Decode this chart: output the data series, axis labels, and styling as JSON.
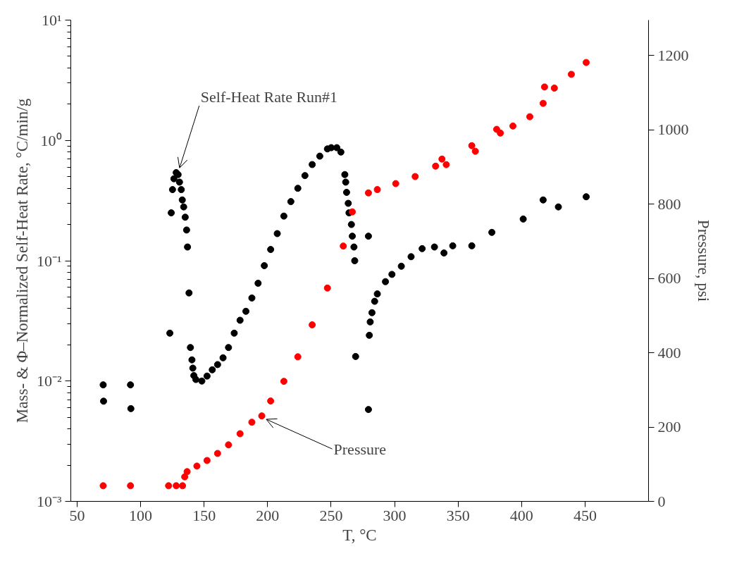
{
  "chart_data": {
    "type": "scatter",
    "xlabel": "T, °C",
    "ylabel": "Mass- & Φ–Normalized Self-Heat Rate, °C/min/g",
    "y2label": "Pressure, psi",
    "xlim": [
      45,
      500
    ],
    "xticks": [
      50,
      100,
      150,
      200,
      250,
      300,
      350,
      400,
      450
    ],
    "ylim": [
      0.001,
      10
    ],
    "yticks": [
      {
        "value": 0.001,
        "label": "10⁻³"
      },
      {
        "value": 0.01,
        "label": "10⁻²"
      },
      {
        "value": 0.1,
        "label": "10⁻¹"
      },
      {
        "value": 1,
        "label": "10⁰"
      },
      {
        "value": 10,
        "label": "10¹"
      }
    ],
    "log": "y",
    "y2lim": [
      0,
      1295
    ],
    "y2ticks": [
      0,
      200,
      400,
      600,
      800,
      1000,
      1200
    ],
    "marker": "circle",
    "grid": false,
    "annotations": [
      {
        "text": "Self-Heat Rate Run#1",
        "x": 129.5,
        "y": 0.54
      },
      {
        "text": "Pressure",
        "x": 195.4,
        "y": 0.005
      }
    ],
    "series": [
      {
        "color": "#000000",
        "x": [
          70.5,
          70.8,
          92.0,
          92.3,
          123.0,
          124.1,
          125.1,
          126.2,
          128.0,
          129.5,
          130.6,
          132.0,
          132.8,
          133.9,
          135.1,
          136.2,
          136.9,
          138.1,
          139.2,
          140.4,
          141.1,
          141.9,
          143.5,
          148.2,
          152.3,
          156.4,
          160.6,
          164.9,
          169.2,
          173.7,
          178.3,
          182.9,
          187.6,
          192.5,
          197.4,
          202.4,
          207.6,
          212.8,
          218.3,
          223.8,
          229.4,
          235.1,
          241.1,
          247.1,
          250.1,
          254.5,
          257.7,
          260.8,
          261.5,
          262.2,
          263.5,
          264.1,
          266.0,
          266.7,
          268.0,
          268.6,
          269.3,
          279.4,
          279.4,
          280.1,
          280.8,
          282.2,
          284.3,
          286.4,
          292.8,
          297.9,
          305.3,
          313.0,
          321.7,
          331.4,
          338.9,
          345.8,
          360.8,
          376.6,
          401.3,
          417.0,
          429.0,
          450.9
        ],
        "values": [
          0.0093,
          0.0068,
          0.0093,
          0.0059,
          0.025,
          0.25,
          0.39,
          0.48,
          0.54,
          0.52,
          0.45,
          0.39,
          0.32,
          0.28,
          0.23,
          0.18,
          0.13,
          0.054,
          0.019,
          0.015,
          0.0128,
          0.0111,
          0.0103,
          0.01,
          0.011,
          0.0124,
          0.0137,
          0.0156,
          0.019,
          0.025,
          0.032,
          0.038,
          0.049,
          0.065,
          0.091,
          0.124,
          0.168,
          0.235,
          0.31,
          0.4,
          0.51,
          0.63,
          0.74,
          0.85,
          0.87,
          0.87,
          0.8,
          0.52,
          0.45,
          0.37,
          0.3,
          0.25,
          0.2,
          0.16,
          0.13,
          0.1,
          0.016,
          0.16,
          0.0058,
          0.024,
          0.031,
          0.037,
          0.046,
          0.053,
          0.067,
          0.077,
          0.09,
          0.108,
          0.126,
          0.13,
          0.116,
          0.133,
          0.133,
          0.172,
          0.222,
          0.32,
          0.28,
          0.34
        ]
      },
      {
        "color": "#ff0000",
        "axis": "y2",
        "x": [
          70.5,
          92.0,
          122.0,
          128.0,
          133.0,
          134.7,
          136.6,
          144.3,
          152.3,
          160.6,
          169.2,
          178.3,
          187.6,
          195.4,
          202.4,
          212.8,
          223.8,
          235.1,
          247.1,
          259.6,
          266.7,
          279.4,
          286.4,
          300.9,
          316.2,
          332.3,
          337.3,
          340.7,
          360.8,
          363.6,
          380.4,
          383.3,
          393.2,
          406.5,
          417.0,
          418.1,
          425.8,
          439.2,
          450.9
        ],
        "values": [
          42,
          42,
          42,
          42,
          42,
          66,
          80,
          95,
          110,
          129,
          152,
          182,
          213,
          230,
          270,
          323,
          389,
          475,
          574,
          687,
          779,
          830,
          839,
          855,
          874,
          902,
          921,
          906,
          957,
          942,
          1001,
          991,
          1010,
          1035,
          1071,
          1115,
          1112,
          1149,
          1181
        ]
      }
    ]
  }
}
